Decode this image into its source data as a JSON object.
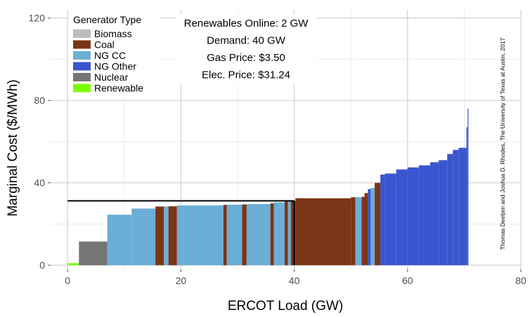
{
  "chart_data": {
    "type": "bar",
    "xlabel": "ERCOT Load (GW)",
    "ylabel": "Marginal Cost ($/MWh)",
    "xlim": [
      -3,
      80
    ],
    "ylim": [
      -2,
      124
    ],
    "x_ticks": [
      0,
      20,
      40,
      60,
      80
    ],
    "y_ticks": [
      0,
      40,
      80,
      120
    ],
    "grid": true,
    "legend": {
      "title": "Generator Type",
      "placement": "top-left",
      "entries": [
        {
          "name": "Biomass",
          "color": "#bdbdbd"
        },
        {
          "name": "Coal",
          "color": "#7b3516"
        },
        {
          "name": "NG CC",
          "color": "#6baed6"
        },
        {
          "name": "NG Other",
          "color": "#3a56cf"
        },
        {
          "name": "Nuclear",
          "color": "#767676"
        },
        {
          "name": "Renewable",
          "color": "#7cfc00"
        }
      ]
    },
    "annotations": [
      "Renewables Online: 2 GW",
      "Demand: 40 GW",
      "Gas Price: $3.50",
      "Elec. Price: $31.24"
    ],
    "credit": "Thomas Deetjen and Joshua D. Rhodes, The University of Texas at Austin, 2017",
    "demand_gw": 40,
    "price_line": 31.24,
    "segments": [
      {
        "x0": 0,
        "x1": 2,
        "y": 1,
        "type": "Renewable"
      },
      {
        "x0": 2,
        "x1": 7,
        "y": 11.5,
        "type": "Nuclear"
      },
      {
        "x0": 7,
        "x1": 11.3,
        "y": 24.5,
        "type": "NG CC"
      },
      {
        "x0": 11.3,
        "x1": 15.5,
        "y": 27.5,
        "type": "NG CC"
      },
      {
        "x0": 15.5,
        "x1": 17,
        "y": 28.5,
        "type": "Coal"
      },
      {
        "x0": 17,
        "x1": 17.8,
        "y": 28.5,
        "type": "NG CC"
      },
      {
        "x0": 17.8,
        "x1": 19.3,
        "y": 28.6,
        "type": "Coal"
      },
      {
        "x0": 19.3,
        "x1": 27.5,
        "y": 29,
        "type": "NG CC"
      },
      {
        "x0": 27.5,
        "x1": 28.1,
        "y": 29.3,
        "type": "Coal"
      },
      {
        "x0": 28.1,
        "x1": 30.8,
        "y": 29.4,
        "type": "NG CC"
      },
      {
        "x0": 30.8,
        "x1": 31.6,
        "y": 29.5,
        "type": "Coal"
      },
      {
        "x0": 31.6,
        "x1": 35.8,
        "y": 29.7,
        "type": "NG CC"
      },
      {
        "x0": 35.8,
        "x1": 36.4,
        "y": 30,
        "type": "Coal"
      },
      {
        "x0": 36.4,
        "x1": 38.3,
        "y": 30.5,
        "type": "NG CC"
      },
      {
        "x0": 38.3,
        "x1": 38.9,
        "y": 31,
        "type": "Coal"
      },
      {
        "x0": 38.9,
        "x1": 39.4,
        "y": 31,
        "type": "NG CC"
      },
      {
        "x0": 39.4,
        "x1": 40.2,
        "y": 31.24,
        "type": "Coal"
      },
      {
        "x0": 40.2,
        "x1": 50,
        "y": 32.5,
        "type": "Coal"
      },
      {
        "x0": 50,
        "x1": 50.8,
        "y": 33,
        "type": "Coal"
      },
      {
        "x0": 50.8,
        "x1": 51.9,
        "y": 33,
        "type": "NG CC"
      },
      {
        "x0": 51.9,
        "x1": 52.4,
        "y": 33.2,
        "type": "Coal"
      },
      {
        "x0": 52.4,
        "x1": 53,
        "y": 35,
        "type": "Coal"
      },
      {
        "x0": 53,
        "x1": 53.5,
        "y": 37,
        "type": "NG Other"
      },
      {
        "x0": 53.5,
        "x1": 54.2,
        "y": 37.5,
        "type": "NG CC"
      },
      {
        "x0": 54.2,
        "x1": 55.2,
        "y": 40,
        "type": "Coal"
      },
      {
        "x0": 55.2,
        "x1": 56,
        "y": 44,
        "type": "NG Other"
      },
      {
        "x0": 56,
        "x1": 58,
        "y": 44.5,
        "type": "NG Other"
      },
      {
        "x0": 58,
        "x1": 60,
        "y": 46.5,
        "type": "NG Other"
      },
      {
        "x0": 60,
        "x1": 62,
        "y": 47.5,
        "type": "NG Other"
      },
      {
        "x0": 62,
        "x1": 64,
        "y": 48.5,
        "type": "NG Other"
      },
      {
        "x0": 64,
        "x1": 65.5,
        "y": 50,
        "type": "NG Other"
      },
      {
        "x0": 65.5,
        "x1": 67,
        "y": 51,
        "type": "NG Other"
      },
      {
        "x0": 67,
        "x1": 68,
        "y": 54,
        "type": "NG Other"
      },
      {
        "x0": 68,
        "x1": 69,
        "y": 56,
        "type": "NG Other"
      },
      {
        "x0": 69,
        "x1": 70.4,
        "y": 57,
        "type": "NG Other"
      },
      {
        "x0": 70.4,
        "x1": 70.6,
        "y": 67,
        "type": "NG Other"
      },
      {
        "x0": 70.6,
        "x1": 70.75,
        "y": 76,
        "type": "NG Other"
      }
    ]
  }
}
